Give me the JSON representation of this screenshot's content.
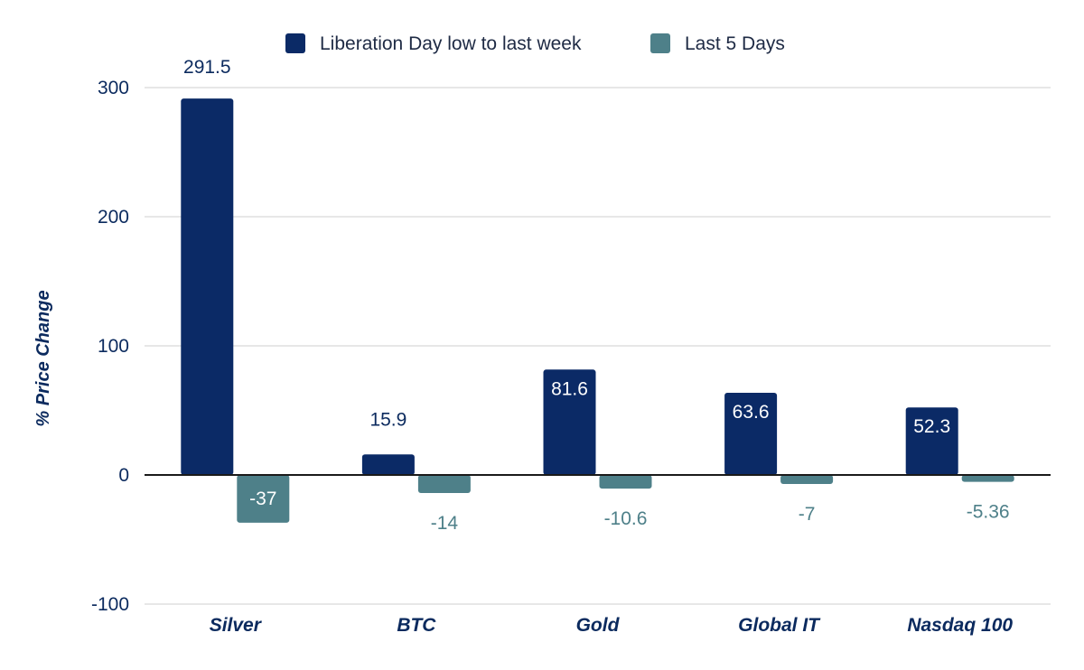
{
  "chart_data": {
    "type": "bar",
    "title": "",
    "xlabel": "",
    "ylabel": "% Price Change",
    "ylim": [
      -100,
      300
    ],
    "yticks": [
      300,
      200,
      100,
      0,
      -100
    ],
    "categories": [
      "Silver",
      "BTC",
      "Gold",
      "Global IT",
      "Nasdaq 100"
    ],
    "series": [
      {
        "name": "Liberation Day low to last week",
        "color": "#0b2a66",
        "values": [
          291.5,
          15.9,
          81.6,
          63.6,
          52.3
        ],
        "labels": [
          "291.5",
          "15.9",
          "81.6",
          "63.6",
          "52.3"
        ]
      },
      {
        "name": "Last 5 Days",
        "color": "#4e8089",
        "values": [
          -37,
          -14,
          -10.6,
          -7,
          -5.36
        ],
        "labels": [
          "-37",
          "-14",
          "-10.6",
          "-7",
          "-5.36"
        ]
      }
    ],
    "legend": "top-center",
    "grid": true
  }
}
